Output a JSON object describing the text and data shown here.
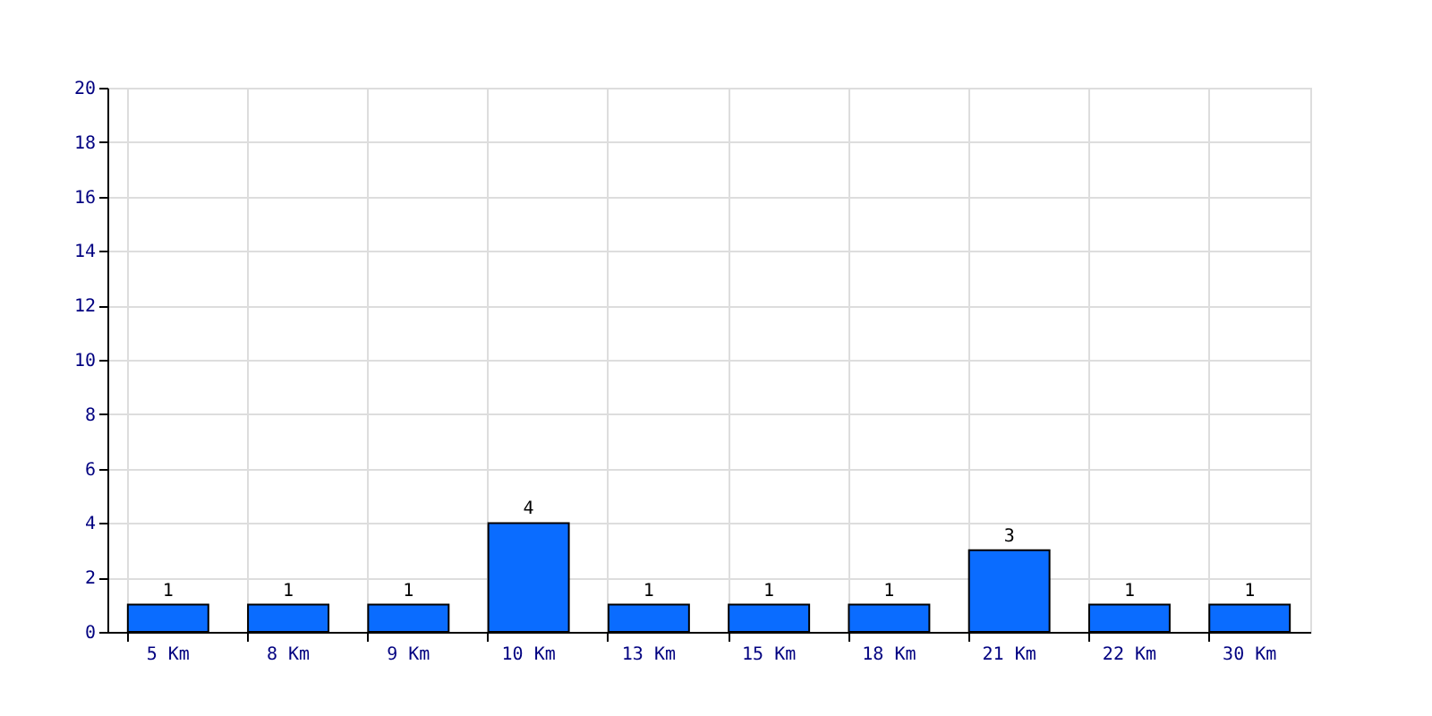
{
  "chart_data": {
    "type": "bar",
    "categories": [
      "5 Km",
      "8 Km",
      "9 Km",
      "10 Km",
      "13 Km",
      "15 Km",
      "18 Km",
      "21 Km",
      "22 Km",
      "30 Km"
    ],
    "values": [
      1,
      1,
      1,
      4,
      1,
      1,
      1,
      3,
      1,
      1
    ],
    "color": "#0a6cff",
    "ylim": [
      0,
      20
    ],
    "yticks": [
      0,
      2,
      4,
      6,
      8,
      10,
      12,
      14,
      16,
      18,
      20
    ],
    "grid": true,
    "data_labels": true
  }
}
